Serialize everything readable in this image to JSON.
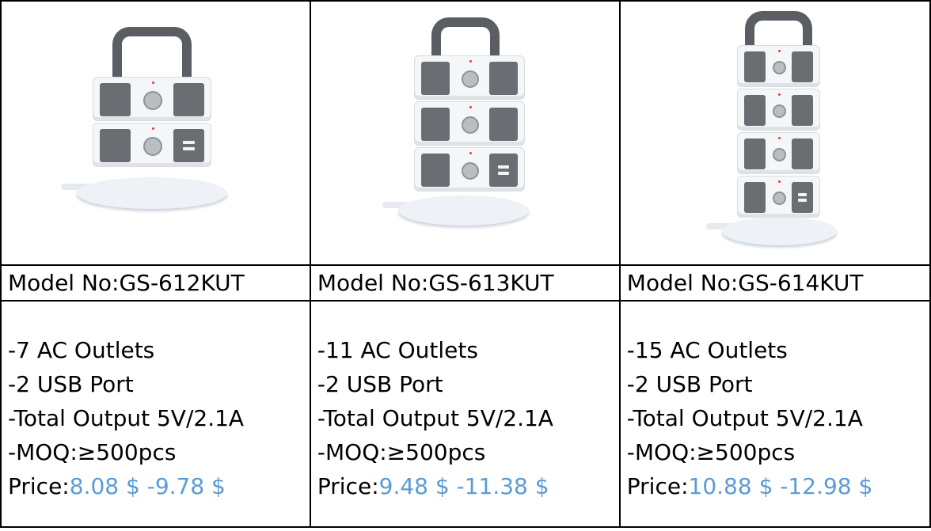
{
  "products": [
    {
      "image_alt": "power-strip-tower-2-tier",
      "model": "Model No:GS-612KUT",
      "specs": [
        "-7 AC Outlets",
        "-2 USB Port",
        "-Total Output 5V/2.1A",
        "-MOQ:≥500pcs"
      ],
      "price_label": "Price:",
      "price_value": "8.08 $ -9.78 $"
    },
    {
      "image_alt": "power-strip-tower-3-tier",
      "model": "Model No:GS-613KUT",
      "specs": [
        "-11 AC Outlets",
        "-2 USB Port",
        "-Total Output 5V/2.1A",
        "-MOQ:≥500pcs"
      ],
      "price_label": "Price:",
      "price_value": "9.48 $ -11.38 $"
    },
    {
      "image_alt": "power-strip-tower-4-tier",
      "model": "Model No:GS-614KUT",
      "specs": [
        "-15 AC Outlets",
        "-2 USB Port",
        "-Total Output 5V/2.1A",
        "-MOQ:≥500pcs"
      ],
      "price_label": "Price:",
      "price_value": "10.88 $ -12.98 $"
    }
  ],
  "colors": {
    "price": "#5b9bd5",
    "border": "#000000",
    "outlet_panel": "#6a6e73"
  }
}
